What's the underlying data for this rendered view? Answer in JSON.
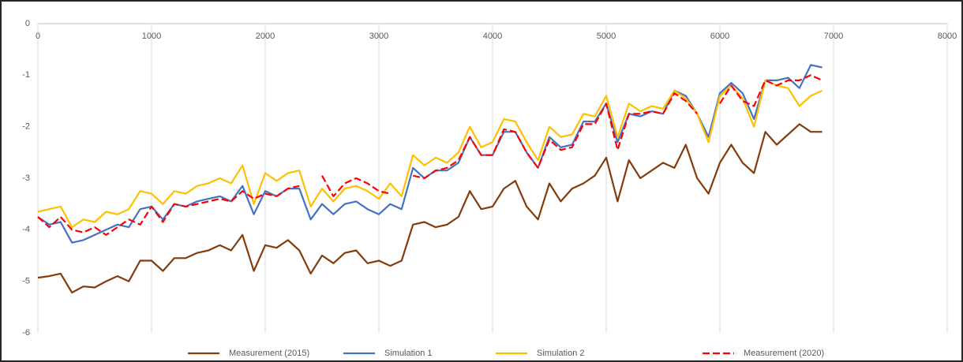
{
  "chart_data": {
    "type": "line",
    "x": [
      0,
      100,
      200,
      300,
      400,
      500,
      600,
      700,
      800,
      900,
      1000,
      1100,
      1200,
      1300,
      1400,
      1500,
      1600,
      1700,
      1800,
      1900,
      2000,
      2100,
      2200,
      2300,
      2400,
      2500,
      2600,
      2700,
      2800,
      2900,
      3000,
      3100,
      3200,
      3300,
      3400,
      3500,
      3600,
      3700,
      3800,
      3900,
      4000,
      4100,
      4200,
      4300,
      4400,
      4500,
      4600,
      4700,
      4800,
      4900,
      5000,
      5100,
      5200,
      5300,
      5400,
      5500,
      5600,
      5700,
      5800,
      5900,
      6000,
      6100,
      6200,
      6300,
      6400,
      6500,
      6600,
      6700,
      6800,
      6900
    ],
    "series": [
      {
        "name": "Measurement (2015)",
        "color": "#843c0c",
        "dashed": false,
        "values": [
          -4.93,
          -4.9,
          -4.85,
          -5.22,
          -5.1,
          -5.12,
          -5.0,
          -4.9,
          -5.0,
          -4.6,
          -4.6,
          -4.8,
          -4.55,
          -4.55,
          -4.45,
          -4.4,
          -4.3,
          -4.4,
          -4.1,
          -4.8,
          -4.3,
          -4.35,
          -4.2,
          -4.4,
          -4.85,
          -4.5,
          -4.65,
          -4.45,
          -4.4,
          -4.65,
          -4.6,
          -4.7,
          -4.6,
          -3.9,
          -3.85,
          -3.95,
          -3.9,
          -3.75,
          -3.25,
          -3.6,
          -3.55,
          -3.2,
          -3.05,
          -3.55,
          -3.8,
          -3.1,
          -3.45,
          -3.2,
          -3.1,
          -2.95,
          -2.6,
          -3.45,
          -2.65,
          -3.0,
          -2.85,
          -2.7,
          -2.8,
          -2.35,
          -3.0,
          -3.3,
          -2.7,
          -2.35,
          -2.7,
          -2.9,
          -2.1,
          -2.35,
          -2.15,
          -1.95,
          -2.1,
          -2.1
        ]
      },
      {
        "name": "Simulation 1",
        "color": "#4472c4",
        "dashed": false,
        "values": [
          -3.75,
          -3.9,
          -3.85,
          -4.25,
          -4.2,
          -4.1,
          -4.0,
          -3.9,
          -3.95,
          -3.6,
          -3.55,
          -3.8,
          -3.5,
          -3.55,
          -3.45,
          -3.4,
          -3.35,
          -3.45,
          -3.15,
          -3.7,
          -3.25,
          -3.35,
          -3.2,
          -3.2,
          -3.8,
          -3.5,
          -3.7,
          -3.5,
          -3.45,
          -3.6,
          -3.7,
          -3.5,
          -3.6,
          -2.8,
          -3.0,
          -2.85,
          -2.85,
          -2.7,
          -2.2,
          -2.55,
          -2.55,
          -2.1,
          -2.1,
          -2.5,
          -2.8,
          -2.2,
          -2.4,
          -2.35,
          -1.9,
          -1.9,
          -1.55,
          -2.3,
          -1.75,
          -1.8,
          -1.7,
          -1.75,
          -1.3,
          -1.4,
          -1.75,
          -2.2,
          -1.35,
          -1.15,
          -1.35,
          -1.85,
          -1.1,
          -1.1,
          -1.05,
          -1.25,
          -0.8,
          -0.85
        ]
      },
      {
        "name": "Simulation 2",
        "color": "#ffc000",
        "dashed": false,
        "values": [
          -3.65,
          -3.6,
          -3.55,
          -3.95,
          -3.8,
          -3.85,
          -3.65,
          -3.7,
          -3.6,
          -3.25,
          -3.3,
          -3.5,
          -3.25,
          -3.3,
          -3.15,
          -3.1,
          -3.0,
          -3.1,
          -2.75,
          -3.5,
          -2.9,
          -3.05,
          -2.9,
          -2.85,
          -3.55,
          -3.2,
          -3.45,
          -3.2,
          -3.15,
          -3.25,
          -3.4,
          -3.1,
          -3.35,
          -2.55,
          -2.75,
          -2.6,
          -2.7,
          -2.5,
          -2.0,
          -2.4,
          -2.3,
          -1.85,
          -1.9,
          -2.3,
          -2.65,
          -2.0,
          -2.2,
          -2.15,
          -1.75,
          -1.8,
          -1.4,
          -2.2,
          -1.55,
          -1.7,
          -1.6,
          -1.65,
          -1.3,
          -1.45,
          -1.75,
          -2.3,
          -1.4,
          -1.2,
          -1.45,
          -2.0,
          -1.1,
          -1.2,
          -1.25,
          -1.6,
          -1.4,
          -1.3
        ]
      },
      {
        "name": "Measurement (2020)",
        "color": "#ff0000",
        "dashed": true,
        "values": [
          -3.75,
          -3.95,
          -3.75,
          -4.0,
          -4.05,
          -3.95,
          -4.1,
          -3.95,
          -3.8,
          -3.9,
          -3.55,
          -3.85,
          -3.5,
          -3.55,
          -3.5,
          -3.45,
          -3.4,
          -3.45,
          -3.25,
          -3.4,
          -3.3,
          -3.35,
          -3.2,
          -3.15,
          null,
          -2.95,
          -3.35,
          -3.1,
          -3.0,
          -3.1,
          -3.25,
          -3.3,
          null,
          -2.95,
          -3.0,
          -2.85,
          -2.8,
          -2.65,
          -2.2,
          -2.55,
          -2.55,
          -2.05,
          -2.1,
          -2.5,
          -2.8,
          -2.25,
          -2.45,
          -2.4,
          -1.95,
          -1.95,
          -1.55,
          -2.45,
          -1.75,
          -1.75,
          -1.7,
          -1.75,
          -1.35,
          -1.5,
          -1.75,
          null,
          -1.55,
          -1.2,
          -1.5,
          -1.6,
          -1.1,
          -1.2,
          -1.1,
          -1.1,
          -1.0,
          -1.1
        ]
      }
    ],
    "xlim": [
      0,
      8000
    ],
    "xticks": [
      0,
      1000,
      2000,
      3000,
      4000,
      5000,
      6000,
      7000,
      8000
    ],
    "ylim": [
      -6,
      0
    ],
    "yticks": [
      0,
      -1,
      -2,
      -3,
      -4,
      -5,
      -6
    ],
    "grid": "x",
    "legend": "bottom"
  }
}
